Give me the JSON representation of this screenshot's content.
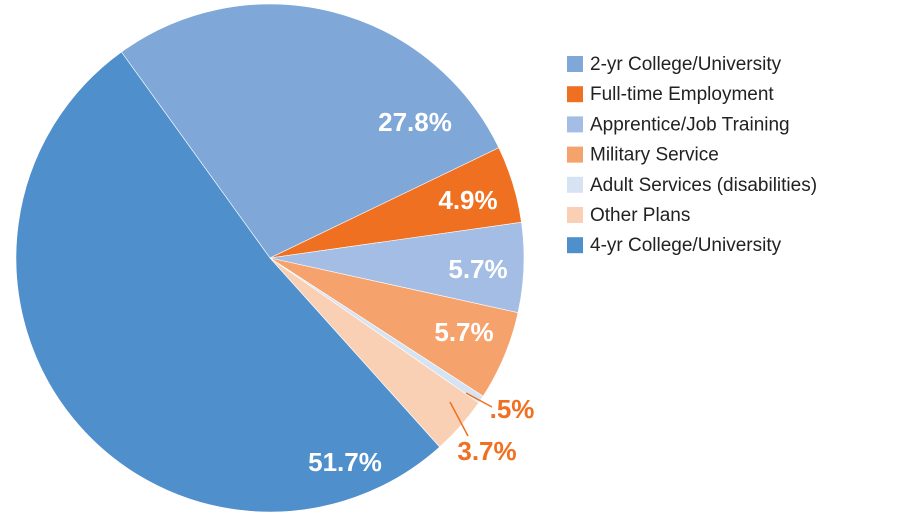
{
  "chart_data": {
    "type": "pie",
    "categories": [
      "2-yr College/University",
      "Full-time Employment",
      "Apprentice/Job Training",
      "Military Service",
      "Adult Services (disabilities)",
      "Other Plans",
      "4-yr College/University"
    ],
    "values": [
      27.8,
      4.9,
      5.7,
      5.7,
      0.5,
      3.7,
      51.7
    ],
    "value_labels": [
      "27.8%",
      "4.9%",
      "5.7%",
      "5.7%",
      ".5%",
      "3.7%",
      "51.7%"
    ],
    "colors": [
      "#7fa8d8",
      "#f07022",
      "#a4bde4",
      "#f6a26c",
      "#d6e3f3",
      "#fad0b4",
      "#4f8fcc"
    ],
    "legend": "right"
  }
}
